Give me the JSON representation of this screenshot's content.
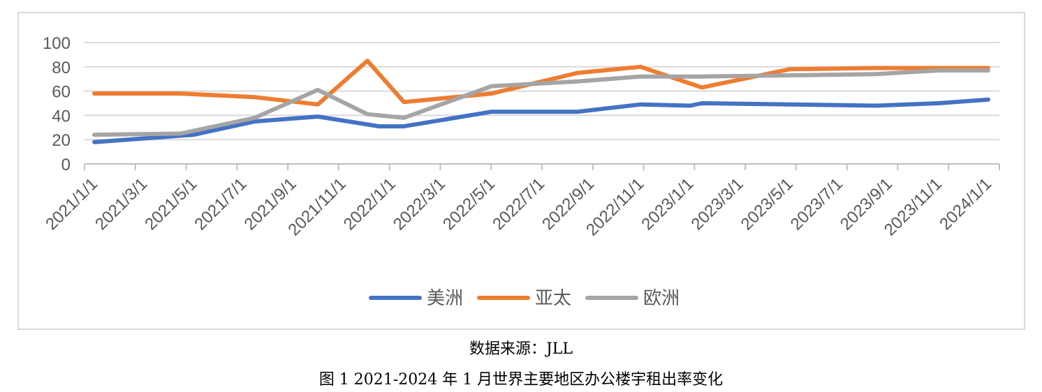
{
  "chart_data": {
    "type": "line",
    "x": [
      "2021/1/1",
      "2021/3/1",
      "2021/5/1",
      "2021/7/1",
      "2021/9/1",
      "2021/11/1",
      "2022/1/1",
      "2022/3/1",
      "2022/5/1",
      "2022/7/1",
      "2022/9/1",
      "2022/11/1",
      "2023/1/1",
      "2023/3/1",
      "2023/5/1",
      "2023/7/1",
      "2023/9/1",
      "2023/11/1",
      "2024/1/1"
    ],
    "ylim": [
      0,
      100
    ],
    "yticks": [
      0,
      20,
      40,
      60,
      80,
      100
    ],
    "grid": true,
    "legend_position": "bottom",
    "series": [
      {
        "name": "美洲",
        "color": "#4472c4",
        "points": [
          {
            "x": "2021/1/1",
            "y": 18
          },
          {
            "x": "2021/5/1",
            "y": 24
          },
          {
            "x": "2021/7/15",
            "y": 35
          },
          {
            "x": "2021/10/1",
            "y": 39
          },
          {
            "x": "2021/12/15",
            "y": 31
          },
          {
            "x": "2022/1/15",
            "y": 31
          },
          {
            "x": "2022/5/1",
            "y": 43
          },
          {
            "x": "2022/8/15",
            "y": 43
          },
          {
            "x": "2022/11/1",
            "y": 49
          },
          {
            "x": "2023/1/1",
            "y": 48
          },
          {
            "x": "2023/1/15",
            "y": 50
          },
          {
            "x": "2023/5/1",
            "y": 49
          },
          {
            "x": "2023/8/15",
            "y": 48
          },
          {
            "x": "2023/11/1",
            "y": 50
          },
          {
            "x": "2024/1/1",
            "y": 53
          }
        ]
      },
      {
        "name": "亚太",
        "color": "#ed7d31",
        "points": [
          {
            "x": "2021/1/1",
            "y": 58
          },
          {
            "x": "2021/4/15",
            "y": 58
          },
          {
            "x": "2021/7/15",
            "y": 55
          },
          {
            "x": "2021/10/1",
            "y": 49
          },
          {
            "x": "2021/12/1",
            "y": 85
          },
          {
            "x": "2022/1/15",
            "y": 51
          },
          {
            "x": "2022/5/1",
            "y": 58
          },
          {
            "x": "2022/8/15",
            "y": 75
          },
          {
            "x": "2022/11/1",
            "y": 80
          },
          {
            "x": "2023/1/15",
            "y": 63
          },
          {
            "x": "2023/5/1",
            "y": 78
          },
          {
            "x": "2023/8/15",
            "y": 79
          },
          {
            "x": "2024/1/1",
            "y": 79
          }
        ]
      },
      {
        "name": "欧洲",
        "color": "#a5a5a5",
        "points": [
          {
            "x": "2021/1/1",
            "y": 24
          },
          {
            "x": "2021/4/15",
            "y": 25
          },
          {
            "x": "2021/7/15",
            "y": 38
          },
          {
            "x": "2021/10/1",
            "y": 61
          },
          {
            "x": "2021/12/1",
            "y": 41
          },
          {
            "x": "2022/1/15",
            "y": 38
          },
          {
            "x": "2022/5/1",
            "y": 64
          },
          {
            "x": "2022/8/15",
            "y": 68
          },
          {
            "x": "2022/11/1",
            "y": 72
          },
          {
            "x": "2023/1/15",
            "y": 72
          },
          {
            "x": "2023/5/1",
            "y": 73
          },
          {
            "x": "2023/8/15",
            "y": 74
          },
          {
            "x": "2023/11/1",
            "y": 77
          },
          {
            "x": "2024/1/1",
            "y": 77
          }
        ]
      }
    ]
  },
  "source_text": "数据来源：JLL",
  "figure_title": "图 1 2021-2024 年 1 月世界主要地区办公楼宇租出率变化"
}
